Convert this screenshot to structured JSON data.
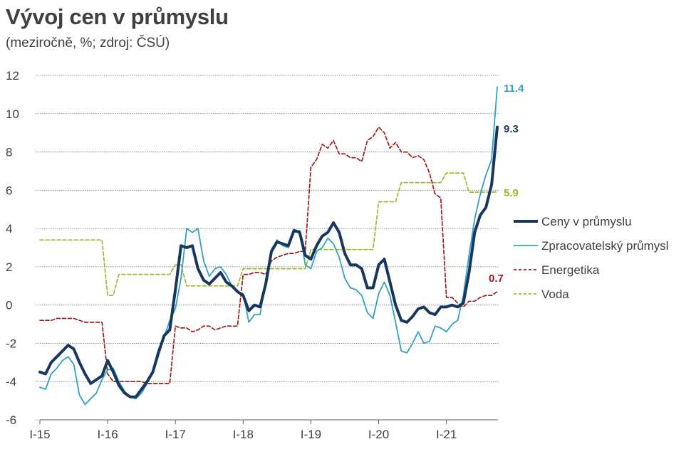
{
  "chart_data": {
    "type": "line",
    "title": "Vývoj cen v průmyslu",
    "subtitle": "(meziročně, %; zdroj: ČSÚ)",
    "xlabel": "",
    "ylabel": "",
    "ylim": [
      -6,
      12
    ],
    "yticks": [
      -6,
      -4,
      -2,
      0,
      2,
      4,
      6,
      8,
      10,
      12
    ],
    "ytick_labels": [
      "-6",
      "-4",
      "-2",
      "0",
      "2",
      "4",
      "6",
      "8",
      "10",
      "12"
    ],
    "grid": true,
    "x_start": "2015-01",
    "x_tick_labels": [
      "I-15",
      "I-16",
      "I-17",
      "I-18",
      "I-19",
      "I-20",
      "I-21"
    ],
    "x_tick_index": [
      0,
      12,
      24,
      36,
      48,
      60,
      72
    ],
    "legend_position": "right",
    "series": [
      {
        "name": "Ceny v průmyslu",
        "color": "#17375e",
        "style": "solid-thick",
        "end_label": "9.3",
        "values": [
          -3.5,
          -3.6,
          -3.0,
          -2.7,
          -2.4,
          -2.1,
          -2.3,
          -3.0,
          -3.6,
          -4.1,
          -3.9,
          -3.7,
          -2.9,
          -3.5,
          -4.2,
          -4.6,
          -4.8,
          -4.8,
          -4.4,
          -4.0,
          -3.5,
          -2.5,
          -1.6,
          -1.3,
          0.8,
          3.1,
          3.0,
          3.1,
          1.9,
          1.3,
          1.1,
          1.4,
          1.7,
          1.2,
          1.0,
          0.7,
          0.5,
          -0.3,
          0.0,
          -0.1,
          1.1,
          2.8,
          3.3,
          3.2,
          3.1,
          3.9,
          3.8,
          2.6,
          2.4,
          3.1,
          3.6,
          3.8,
          4.3,
          3.8,
          2.7,
          2.1,
          2.1,
          1.9,
          0.9,
          0.9,
          2.1,
          2.4,
          1.2,
          0.0,
          -0.8,
          -0.9,
          -0.6,
          -0.2,
          -0.1,
          -0.4,
          -0.5,
          -0.1,
          -0.1,
          0.0,
          -0.1,
          0.1,
          1.7,
          3.8,
          4.7,
          5.1,
          6.3,
          9.3
        ]
      },
      {
        "name": "Zpracovatelský průmysl",
        "color": "#31a0c4",
        "style": "solid",
        "end_label": "11.4",
        "values": [
          -4.3,
          -4.4,
          -3.6,
          -3.3,
          -2.9,
          -2.7,
          -3.1,
          -4.7,
          -5.2,
          -4.9,
          -4.6,
          -3.9,
          -3.4,
          -3.3,
          -4.0,
          -4.5,
          -4.8,
          -4.9,
          -4.6,
          -4.1,
          -3.4,
          -2.3,
          -1.7,
          -0.8,
          -0.2,
          1.4,
          4.0,
          3.8,
          4.0,
          2.3,
          1.5,
          1.9,
          2.0,
          1.6,
          1.0,
          0.7,
          0.6,
          -0.9,
          -0.5,
          -0.5,
          1.3,
          2.9,
          3.4,
          3.1,
          3.0,
          3.8,
          3.9,
          2.1,
          1.9,
          2.8,
          3.0,
          3.5,
          3.2,
          2.5,
          1.4,
          0.9,
          0.8,
          0.5,
          -0.4,
          -0.7,
          0.6,
          1.2,
          0.5,
          -0.9,
          -2.4,
          -2.5,
          -2.0,
          -1.4,
          -2.0,
          -1.9,
          -1.1,
          -1.2,
          -1.4,
          -1.0,
          -0.8,
          0.5,
          2.6,
          4.5,
          5.8,
          6.8,
          7.6,
          11.4
        ]
      },
      {
        "name": "Energetika",
        "color": "#a11a1a",
        "style": "dashed",
        "end_label": "0.7",
        "values": [
          -0.8,
          -0.8,
          -0.8,
          -0.7,
          -0.7,
          -0.7,
          -0.7,
          -0.8,
          -0.9,
          -0.9,
          -0.9,
          -0.9,
          -3.6,
          -4.0,
          -4.0,
          -4.0,
          -4.0,
          -4.0,
          -4.0,
          -4.1,
          -4.1,
          -4.1,
          -4.1,
          -4.1,
          -1.1,
          -1.2,
          -1.2,
          -1.4,
          -1.3,
          -1.1,
          -1.1,
          -1.3,
          -1.2,
          -1.1,
          -1.1,
          -1.1,
          1.6,
          1.6,
          1.7,
          1.7,
          1.6,
          2.3,
          2.5,
          2.6,
          2.7,
          2.7,
          2.8,
          2.8,
          7.2,
          7.6,
          8.4,
          8.2,
          8.6,
          7.9,
          7.9,
          7.7,
          7.7,
          7.5,
          8.6,
          8.8,
          9.3,
          9.0,
          8.2,
          8.5,
          8.0,
          8.0,
          7.7,
          7.8,
          7.6,
          6.9,
          5.8,
          5.6,
          0.4,
          0.4,
          0.1,
          -0.1,
          0.2,
          0.2,
          0.4,
          0.5,
          0.5,
          0.7
        ]
      },
      {
        "name": "Voda",
        "color": "#9bbb2b",
        "style": "dashed",
        "end_label": "5.9",
        "values": [
          3.4,
          3.4,
          3.4,
          3.4,
          3.4,
          3.4,
          3.4,
          3.4,
          3.4,
          3.4,
          3.4,
          3.4,
          0.5,
          0.5,
          1.6,
          1.6,
          1.6,
          1.6,
          1.6,
          1.6,
          1.6,
          1.6,
          1.6,
          1.6,
          2.1,
          2.1,
          1.0,
          1.0,
          1.0,
          1.0,
          1.0,
          1.0,
          1.0,
          1.0,
          1.0,
          1.0,
          1.9,
          1.9,
          1.9,
          1.9,
          1.9,
          1.9,
          1.9,
          1.9,
          1.9,
          1.9,
          1.9,
          1.9,
          2.9,
          2.9,
          2.9,
          2.9,
          2.9,
          2.9,
          2.9,
          2.9,
          2.9,
          2.9,
          2.9,
          2.9,
          5.4,
          5.4,
          5.4,
          5.4,
          6.4,
          6.4,
          6.4,
          6.4,
          6.4,
          6.4,
          6.4,
          6.4,
          6.9,
          6.9,
          6.9,
          6.9,
          5.9,
          5.9,
          5.9,
          5.9,
          5.9,
          5.9
        ]
      }
    ]
  }
}
